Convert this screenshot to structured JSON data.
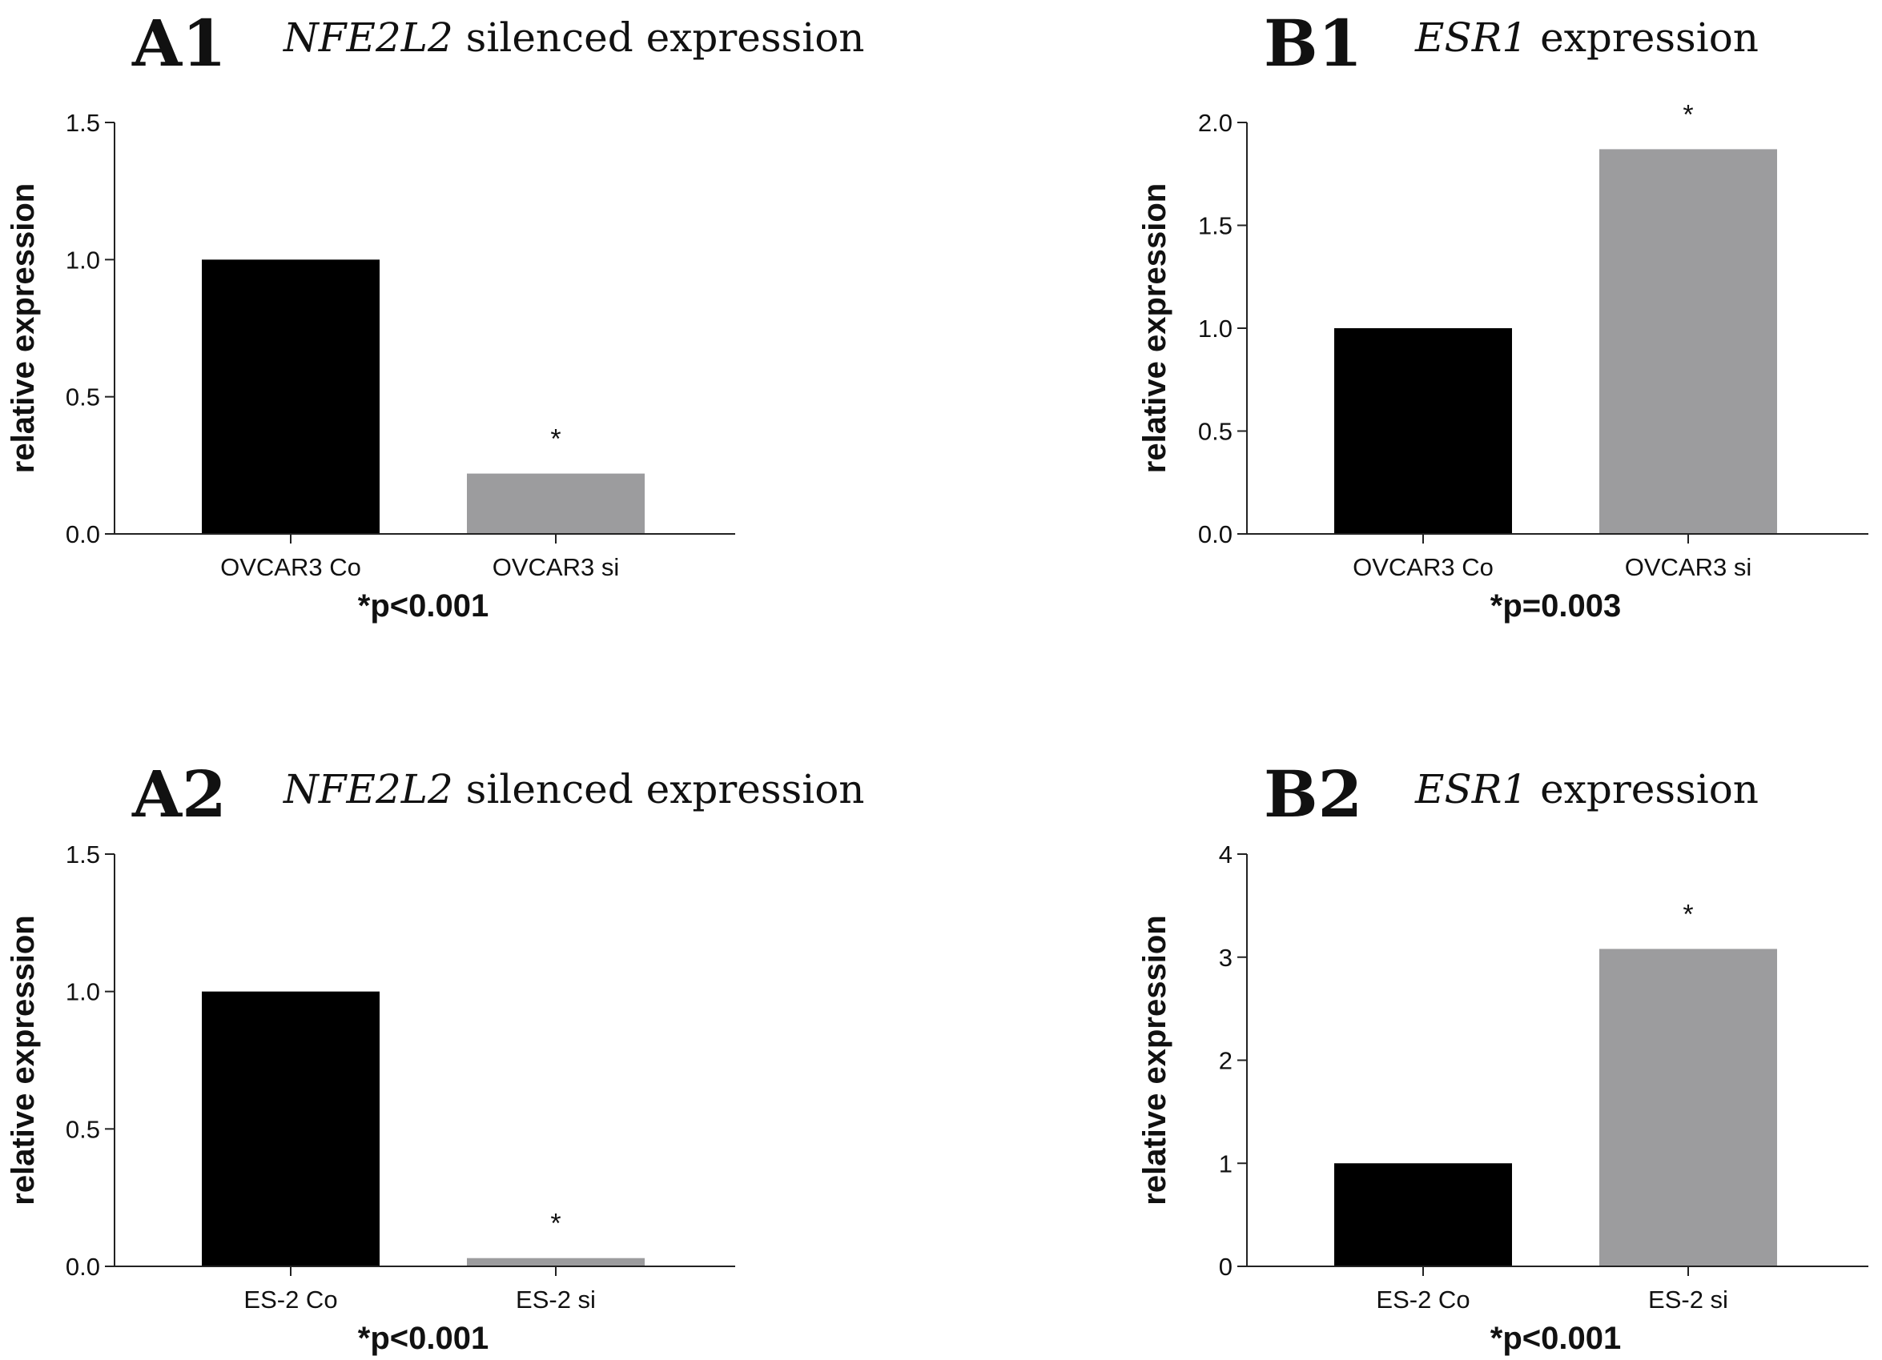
{
  "chart_data": [
    {
      "type": "bar",
      "panel": "A1",
      "title_gene": "NFE2L2",
      "title_rest": " silenced expression",
      "categories": [
        "OVCAR3 Co",
        "OVCAR3 si"
      ],
      "values": [
        1.0,
        0.22
      ],
      "colors": [
        "#000000",
        "#9c9c9e"
      ],
      "significance": [
        "",
        "*"
      ],
      "ylabel": "relative expression",
      "ylim": [
        0,
        1.5
      ],
      "yticks": [
        0.0,
        0.5,
        1.0,
        1.5
      ],
      "ytick_labels": [
        "0.0",
        "0.5",
        "1.0",
        "1.5"
      ],
      "pvalue": "*p<0.001"
    },
    {
      "type": "bar",
      "panel": "B1",
      "title_gene": "ESR1",
      "title_rest": " expression",
      "categories": [
        "OVCAR3 Co",
        "OVCAR3 si"
      ],
      "values": [
        1.0,
        1.87
      ],
      "colors": [
        "#000000",
        "#9c9c9e"
      ],
      "significance": [
        "",
        "*"
      ],
      "ylabel": "relative expression",
      "ylim": [
        0,
        2.0
      ],
      "yticks": [
        0.0,
        0.5,
        1.0,
        1.5,
        2.0
      ],
      "ytick_labels": [
        "0.0",
        "0.5",
        "1.0",
        "1.5",
        "2.0"
      ],
      "pvalue": "*p=0.003"
    },
    {
      "type": "bar",
      "panel": "A2",
      "title_gene": "NFE2L2",
      "title_rest": " silenced expression",
      "categories": [
        "ES-2 Co",
        "ES-2 si"
      ],
      "values": [
        1.0,
        0.03
      ],
      "colors": [
        "#000000",
        "#9c9c9e"
      ],
      "significance": [
        "",
        "*"
      ],
      "ylabel": "relative expression",
      "ylim": [
        0,
        1.5
      ],
      "yticks": [
        0.0,
        0.5,
        1.0,
        1.5
      ],
      "ytick_labels": [
        "0.0",
        "0.5",
        "1.0",
        "1.5"
      ],
      "pvalue": "*p<0.001"
    },
    {
      "type": "bar",
      "panel": "B2",
      "title_gene": "ESR1",
      "title_rest": " expression",
      "categories": [
        "ES-2 Co",
        "ES-2 si"
      ],
      "values": [
        1.0,
        3.08
      ],
      "colors": [
        "#000000",
        "#9c9c9e"
      ],
      "significance": [
        "",
        "*"
      ],
      "ylabel": "relative expression",
      "ylim": [
        0,
        4
      ],
      "yticks": [
        0,
        1,
        2,
        3,
        4
      ],
      "ytick_labels": [
        "0",
        "1",
        "2",
        "3",
        "4"
      ],
      "pvalue": "*p<0.001"
    }
  ]
}
